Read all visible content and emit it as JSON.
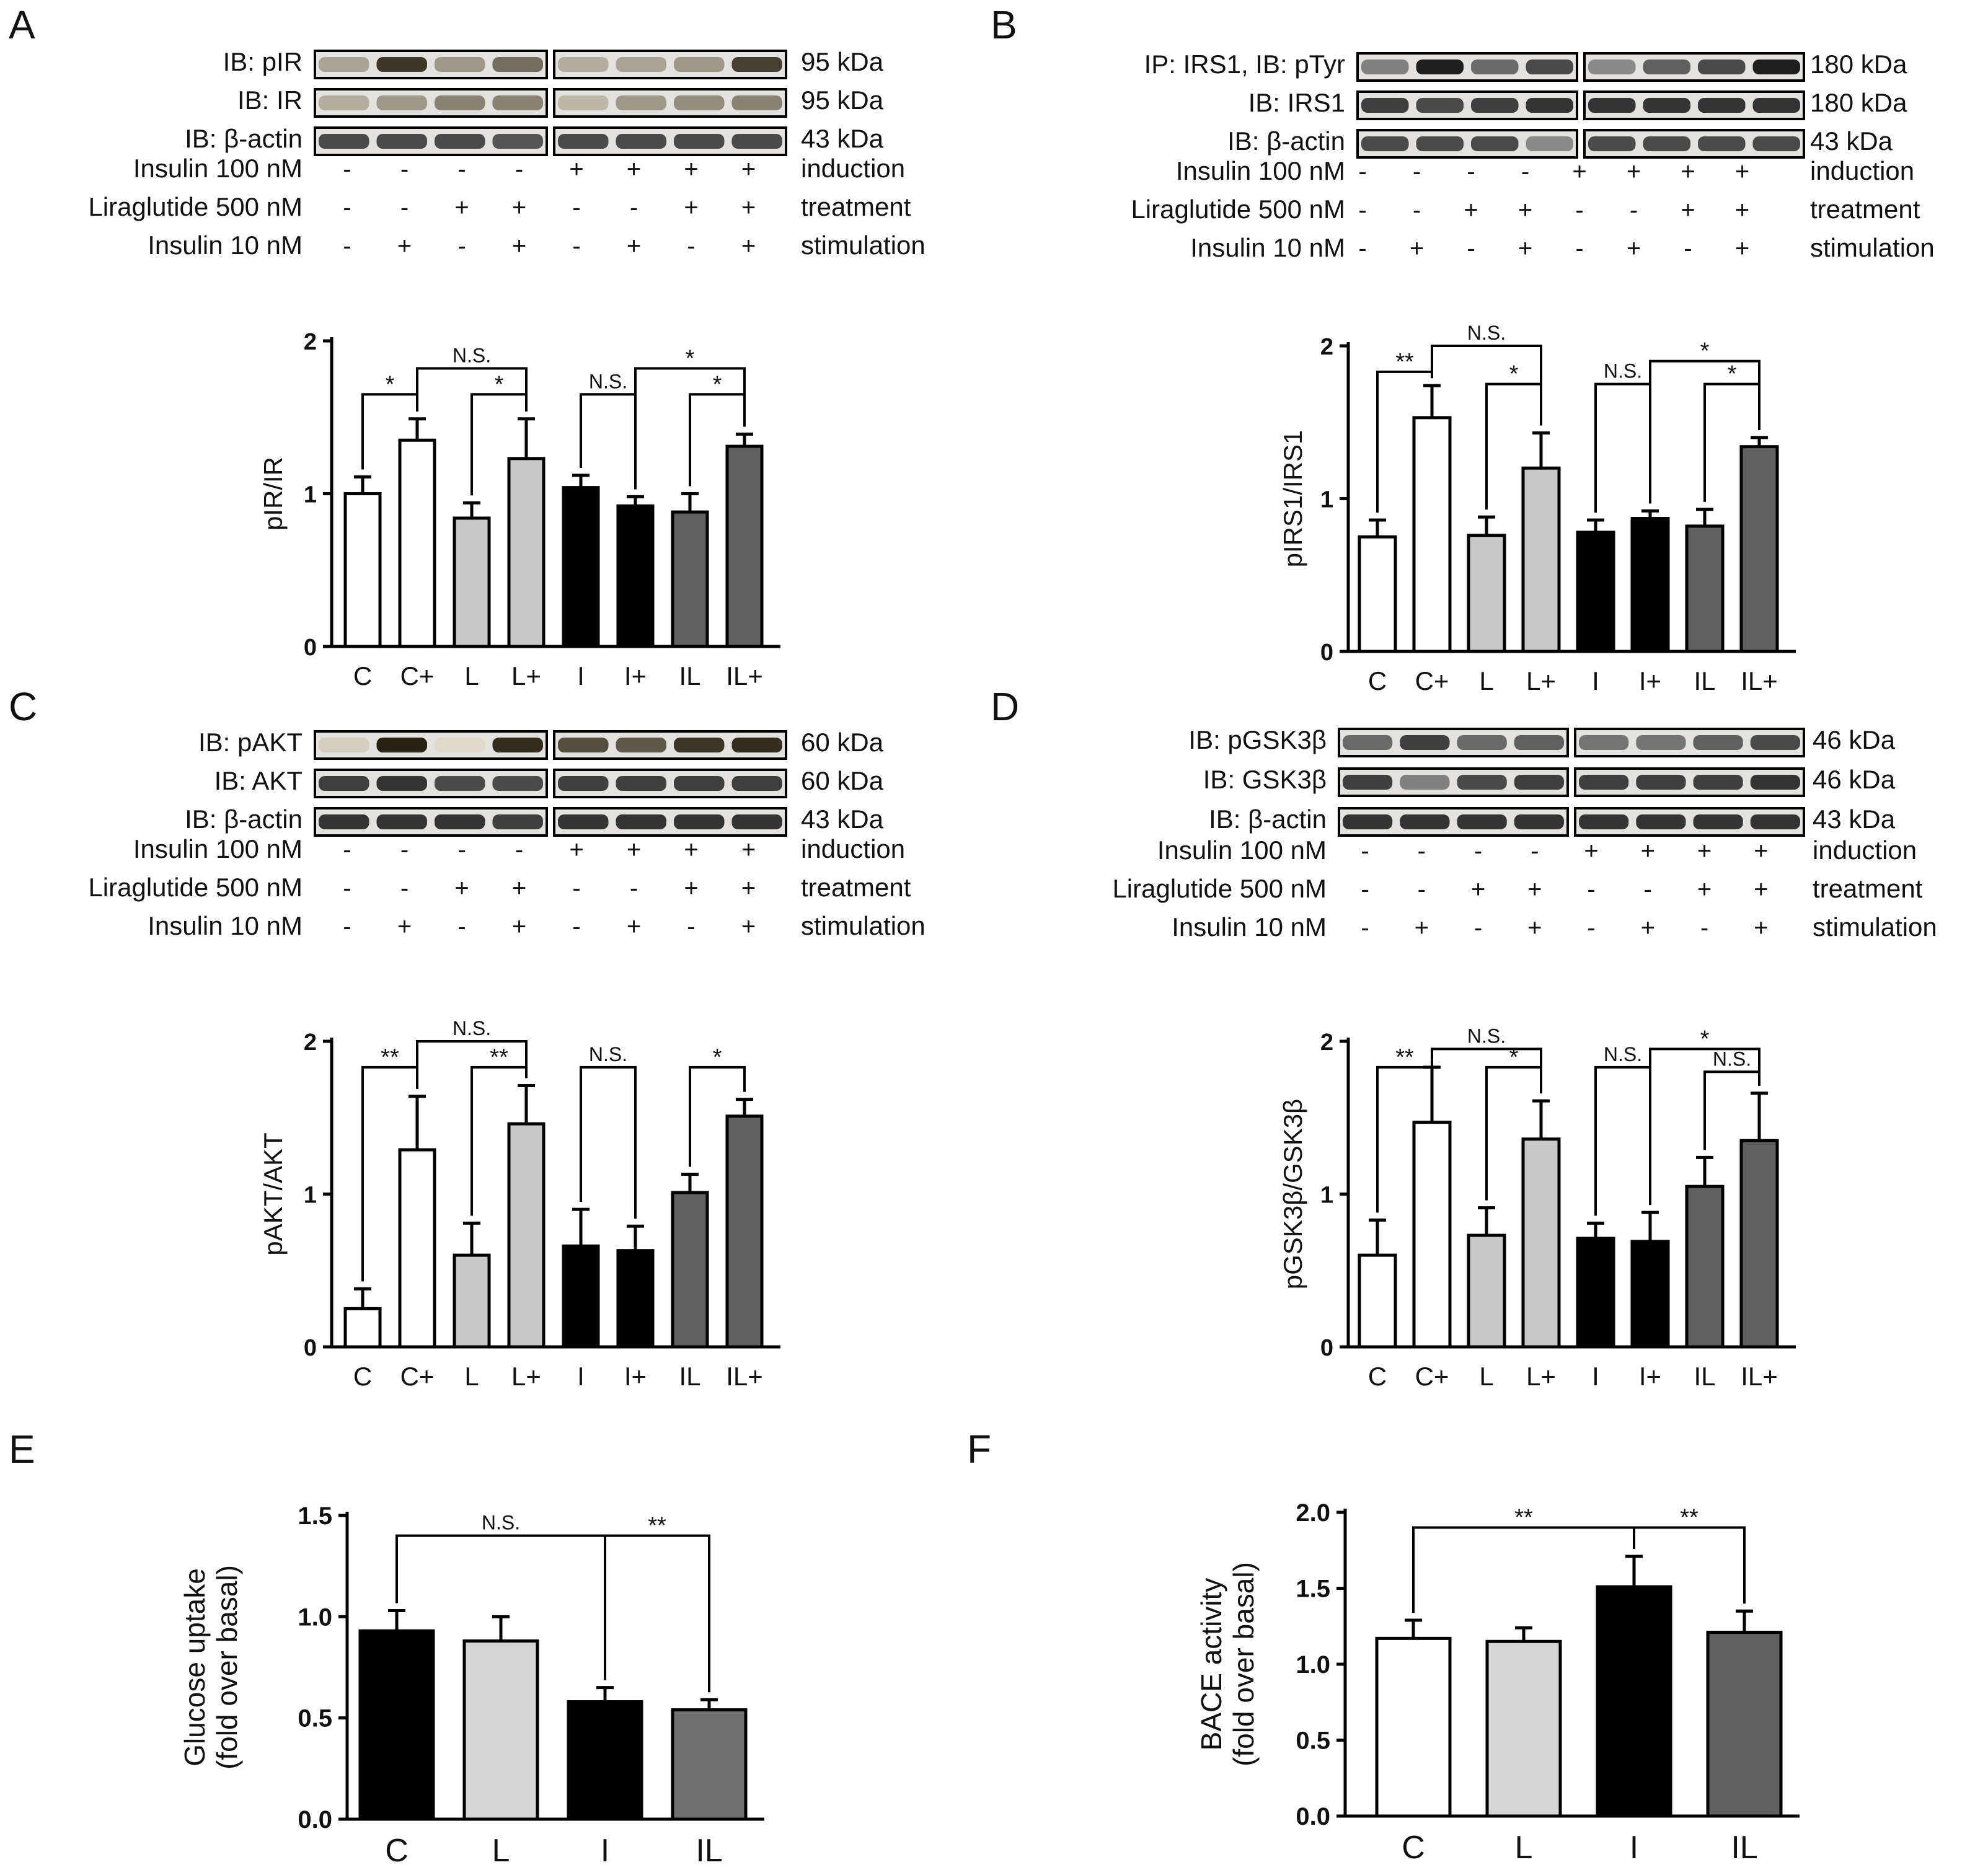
{
  "colors": {
    "C": "#ffffff",
    "C+": "#ffffff",
    "L": "#c8c8c8",
    "L+": "#c8c8c8",
    "I": "#000000",
    "I+": "#000000",
    "IL": "#606060",
    "IL+": "#606060",
    "glucose_L": "#d4d4d4",
    "glucose_IL": "#707070",
    "stroke": "#000000"
  },
  "row_labels": {
    "induction_label": "Insulin 100 nM",
    "treatment_label": "Liraglutide 500 nM",
    "stimulation_label": "Insulin 10 nM",
    "induction_word": "induction",
    "treatment_word": "treatment",
    "stimulation_word": "stimulation",
    "induction_signs": [
      "-",
      "-",
      "-",
      "-",
      "+",
      "+",
      "+",
      "+"
    ],
    "treatment_signs": [
      "-",
      "-",
      "+",
      "+",
      "-",
      "-",
      "+",
      "+"
    ],
    "stimulation_signs": [
      "-",
      "+",
      "-",
      "+",
      "-",
      "+",
      "-",
      "+"
    ]
  },
  "panels": {
    "A": {
      "letter": "A",
      "blots": [
        {
          "label": "IB: pIR",
          "size": "95 kDa",
          "intensity": [
            0.35,
            0.85,
            0.4,
            0.6,
            0.3,
            0.35,
            0.4,
            0.8
          ],
          "brown": true
        },
        {
          "label": "IB: IR",
          "size": "95 kDa",
          "intensity": [
            0.3,
            0.4,
            0.5,
            0.5,
            0.25,
            0.4,
            0.45,
            0.5
          ],
          "brown": true
        },
        {
          "label": "IB: β-actin",
          "size": "43 kDa",
          "intensity": [
            0.75,
            0.75,
            0.75,
            0.7,
            0.75,
            0.75,
            0.75,
            0.75
          ],
          "brown": false
        }
      ]
    },
    "B": {
      "letter": "B",
      "blots": [
        {
          "label": "IP: IRS1, IB: pTyr",
          "size": "180 kDa",
          "intensity": [
            0.5,
            0.95,
            0.6,
            0.75,
            0.45,
            0.65,
            0.75,
            0.95
          ],
          "brown": false
        },
        {
          "label": "IB: IRS1",
          "size": "180 kDa",
          "intensity": [
            0.8,
            0.75,
            0.8,
            0.85,
            0.85,
            0.85,
            0.85,
            0.85
          ],
          "brown": false
        },
        {
          "label": "IB: β-actin",
          "size": "43 kDa",
          "intensity": [
            0.75,
            0.75,
            0.75,
            0.45,
            0.75,
            0.75,
            0.75,
            0.75
          ],
          "brown": false
        }
      ]
    },
    "C": {
      "letter": "C",
      "blots": [
        {
          "label": "IB: pAKT",
          "size": "60 kDa",
          "intensity": [
            0.15,
            0.95,
            0.1,
            0.9,
            0.75,
            0.7,
            0.85,
            0.9
          ],
          "brown": true
        },
        {
          "label": "IB: AKT",
          "size": "60 kDa",
          "intensity": [
            0.8,
            0.85,
            0.75,
            0.75,
            0.8,
            0.8,
            0.8,
            0.8
          ],
          "brown": false
        },
        {
          "label": "IB: β-actin",
          "size": "43 kDa",
          "intensity": [
            0.85,
            0.85,
            0.85,
            0.8,
            0.85,
            0.85,
            0.85,
            0.85
          ],
          "brown": false
        }
      ]
    },
    "D": {
      "letter": "D",
      "blots": [
        {
          "label": "IB: pGSK3β",
          "size": "46 kDa",
          "intensity": [
            0.6,
            0.8,
            0.6,
            0.65,
            0.55,
            0.55,
            0.65,
            0.75
          ],
          "brown": false
        },
        {
          "label": "IB: GSK3β",
          "size": "46 kDa",
          "intensity": [
            0.8,
            0.5,
            0.75,
            0.8,
            0.8,
            0.8,
            0.8,
            0.85
          ],
          "brown": false
        },
        {
          "label": "IB: β-actin",
          "size": "43 kDa",
          "intensity": [
            0.85,
            0.85,
            0.85,
            0.85,
            0.85,
            0.85,
            0.85,
            0.85
          ],
          "brown": false
        }
      ]
    },
    "E": {
      "letter": "E"
    },
    "F": {
      "letter": "F"
    }
  },
  "chart_data": [
    {
      "id": "A",
      "type": "bar",
      "ylabel": "pIR/IR",
      "ylim": [
        0,
        2
      ],
      "yticks": [
        "0",
        "1",
        "2"
      ],
      "categories": [
        "C",
        "C+",
        "L",
        "L+",
        "I",
        "I+",
        "IL",
        "IL+"
      ],
      "values": [
        1.0,
        1.35,
        0.84,
        1.23,
        1.04,
        0.92,
        0.88,
        1.31
      ],
      "errors": [
        0.11,
        0.14,
        0.1,
        0.26,
        0.08,
        0.06,
        0.12,
        0.08
      ],
      "significance": [
        {
          "a": 0,
          "b": 1,
          "level": 1.65,
          "label": "*",
          "style": "bracket"
        },
        {
          "a": 1,
          "b": 3,
          "level": 1.82,
          "label": "N.S.",
          "style": "bracket"
        },
        {
          "a": 2,
          "b": 3,
          "level": 1.65,
          "label": "*",
          "style": "bracket"
        },
        {
          "a": 4,
          "b": 5,
          "level": 1.65,
          "label": "N.S.",
          "style": "bracket"
        },
        {
          "a": 5,
          "b": 7,
          "level": 1.82,
          "label": "*",
          "style": "bracket"
        },
        {
          "a": 6,
          "b": 7,
          "level": 1.65,
          "label": "*",
          "style": "bracket"
        }
      ]
    },
    {
      "id": "B",
      "type": "bar",
      "ylabel": "pIRS1/IRS1",
      "ylim": [
        0,
        2
      ],
      "yticks": [
        "0",
        "1",
        "2"
      ],
      "categories": [
        "C",
        "C+",
        "L",
        "L+",
        "I",
        "I+",
        "IL",
        "IL+"
      ],
      "values": [
        0.75,
        1.53,
        0.76,
        1.2,
        0.78,
        0.87,
        0.82,
        1.34
      ],
      "errors": [
        0.11,
        0.21,
        0.12,
        0.23,
        0.08,
        0.05,
        0.11,
        0.06
      ],
      "significance": [
        {
          "a": 0,
          "b": 1,
          "level": 1.83,
          "label": "**",
          "style": "bracket"
        },
        {
          "a": 1,
          "b": 3,
          "level": 2.0,
          "label": "N.S.",
          "style": "bracket"
        },
        {
          "a": 2,
          "b": 3,
          "level": 1.75,
          "label": "*",
          "style": "bracket"
        },
        {
          "a": 4,
          "b": 5,
          "level": 1.75,
          "label": "N.S.",
          "style": "bracket"
        },
        {
          "a": 5,
          "b": 7,
          "level": 1.9,
          "label": "*",
          "style": "bracket"
        },
        {
          "a": 6,
          "b": 7,
          "level": 1.75,
          "label": "*",
          "style": "bracket"
        }
      ]
    },
    {
      "id": "C",
      "type": "bar",
      "ylabel": "pAKT/AKT",
      "ylim": [
        0,
        2
      ],
      "yticks": [
        "0",
        "1",
        "2"
      ],
      "categories": [
        "C",
        "C+",
        "L",
        "L+",
        "I",
        "I+",
        "IL",
        "IL+"
      ],
      "values": [
        0.25,
        1.29,
        0.6,
        1.46,
        0.66,
        0.63,
        1.01,
        1.51
      ],
      "errors": [
        0.13,
        0.35,
        0.21,
        0.25,
        0.24,
        0.16,
        0.12,
        0.11
      ],
      "significance": [
        {
          "a": 0,
          "b": 1,
          "level": 1.83,
          "label": "**",
          "style": "bracket"
        },
        {
          "a": 1,
          "b": 3,
          "level": 2.0,
          "label": "N.S.",
          "style": "bracket"
        },
        {
          "a": 2,
          "b": 3,
          "level": 1.83,
          "label": "**",
          "style": "bracket"
        },
        {
          "a": 4,
          "b": 5,
          "level": 1.83,
          "label": "N.S.",
          "style": "bracket"
        },
        {
          "a": 6,
          "b": 7,
          "level": 1.83,
          "label": "*",
          "style": "bracket"
        }
      ]
    },
    {
      "id": "D",
      "type": "bar",
      "ylabel": "pGSK3β/GSK3β",
      "ylim": [
        0,
        2
      ],
      "yticks": [
        "0",
        "1",
        "2"
      ],
      "categories": [
        "C",
        "C+",
        "L",
        "L+",
        "I",
        "I+",
        "IL",
        "IL+"
      ],
      "values": [
        0.6,
        1.47,
        0.73,
        1.36,
        0.71,
        0.69,
        1.05,
        1.35
      ],
      "errors": [
        0.23,
        0.36,
        0.18,
        0.25,
        0.1,
        0.19,
        0.19,
        0.31
      ],
      "significance": [
        {
          "a": 0,
          "b": 1,
          "level": 1.83,
          "label": "**",
          "style": "bracket"
        },
        {
          "a": 1,
          "b": 3,
          "level": 1.95,
          "label": "N.S.",
          "style": "bracket"
        },
        {
          "a": 2,
          "b": 3,
          "level": 1.83,
          "label": "*",
          "style": "bracket"
        },
        {
          "a": 4,
          "b": 5,
          "level": 1.83,
          "label": "N.S.",
          "style": "bracket"
        },
        {
          "a": 5,
          "b": 7,
          "level": 1.95,
          "label": "*",
          "style": "bracket"
        },
        {
          "a": 6,
          "b": 7,
          "level": 1.8,
          "label": "N.S.",
          "style": "bracket"
        }
      ]
    },
    {
      "id": "E",
      "type": "bar",
      "ylabel": "Glucose uptake",
      "ylabel2": "(fold over basal)",
      "ylim": [
        0,
        1.5
      ],
      "yticks": [
        "0.0",
        "0.5",
        "1.0",
        "1.5"
      ],
      "categories": [
        "C",
        "L",
        "I",
        "IL"
      ],
      "values": [
        0.93,
        0.88,
        0.58,
        0.54
      ],
      "errors": [
        0.1,
        0.12,
        0.07,
        0.05
      ],
      "significance": [
        {
          "a": 0,
          "b": 2,
          "level": 1.4,
          "label": "N.S.",
          "style": "span"
        },
        {
          "a": 2,
          "b": 3,
          "level": 1.4,
          "label": "**",
          "style": "span"
        }
      ]
    },
    {
      "id": "F",
      "type": "bar",
      "ylabel": "BACE activity",
      "ylabel2": "(fold over basal)",
      "ylim": [
        0,
        2.0
      ],
      "yticks": [
        "0.0",
        "0.5",
        "1.0",
        "1.5",
        "2.0"
      ],
      "categories": [
        "C",
        "L",
        "I",
        "IL"
      ],
      "values": [
        1.17,
        1.15,
        1.51,
        1.21
      ],
      "errors": [
        0.12,
        0.09,
        0.2,
        0.14
      ],
      "significance": [
        {
          "a": 0,
          "b": 2,
          "level": 1.9,
          "label": "**",
          "style": "span"
        },
        {
          "a": 2,
          "b": 3,
          "level": 1.9,
          "label": "**",
          "style": "span"
        }
      ]
    }
  ]
}
